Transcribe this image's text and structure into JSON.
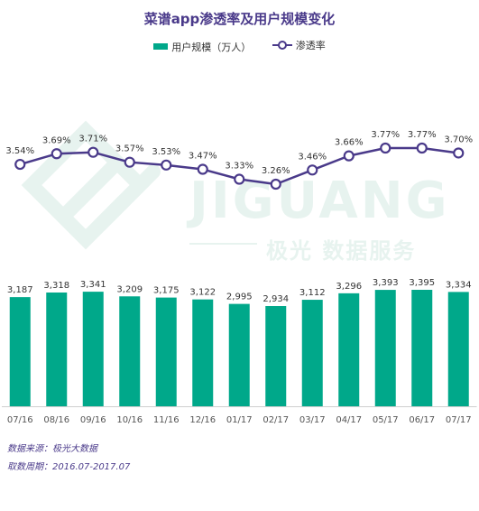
{
  "title": "菜谱app渗透率及用户规模变化",
  "legend": {
    "bar_label": "用户规模（万人）",
    "line_label": "渗透率"
  },
  "watermark": {
    "en": "JIGUANG",
    "cn": "极光 数据服务"
  },
  "footer": {
    "source": "数据来源：极光大数据",
    "period": "取数周期：2016.07-2017.07"
  },
  "colors": {
    "bar": "#00a88a",
    "line": "#4a3a8a",
    "title": "#4a3a8a",
    "watermark": "#e7f3ef"
  },
  "chart_data": {
    "type": "bar+line",
    "categories": [
      "07/16",
      "08/16",
      "09/16",
      "10/16",
      "11/16",
      "12/16",
      "01/17",
      "02/17",
      "03/17",
      "04/17",
      "05/17",
      "06/17",
      "07/17"
    ],
    "series": [
      {
        "name": "用户规模（万人）",
        "type": "bar",
        "values": [
          3187,
          3318,
          3341,
          3209,
          3175,
          3122,
          2995,
          2934,
          3112,
          3296,
          3393,
          3395,
          3334
        ],
        "labels": [
          "3,187",
          "3,318",
          "3,341",
          "3,209",
          "3,175",
          "3,122",
          "2,995",
          "2,934",
          "3,112",
          "3,296",
          "3,393",
          "3,395",
          "3,334"
        ]
      },
      {
        "name": "渗透率",
        "type": "line",
        "values": [
          3.54,
          3.69,
          3.71,
          3.57,
          3.53,
          3.47,
          3.33,
          3.26,
          3.46,
          3.66,
          3.77,
          3.77,
          3.7
        ],
        "labels": [
          "3.54%",
          "3.69%",
          "3.71%",
          "3.57%",
          "3.53%",
          "3.47%",
          "3.33%",
          "3.26%",
          "3.46%",
          "3.66%",
          "3.77%",
          "3.77%",
          "3.70%"
        ]
      }
    ],
    "bar_axis_range": [
      0,
      3395
    ],
    "line_axis_range": [
      3.26,
      3.77
    ],
    "grid": false,
    "legend_position": "top-center"
  }
}
